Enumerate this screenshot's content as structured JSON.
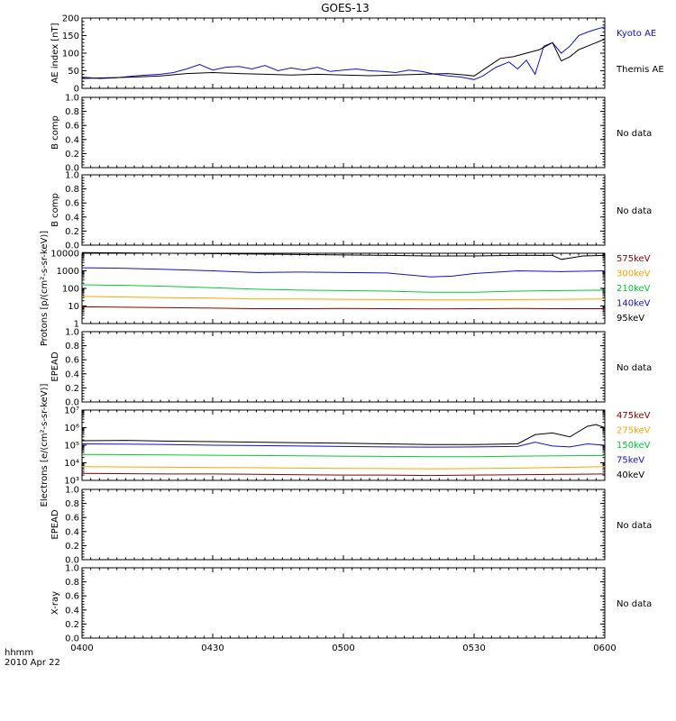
{
  "title": "GOES-13",
  "x_axis": {
    "corner_label": "hhmm",
    "date": "2010 Apr 22",
    "tick_labels": [
      "0400",
      "0430",
      "0500",
      "0530",
      "0600"
    ],
    "tick_values_min": [
      0,
      30,
      60,
      90,
      120
    ],
    "range_min": [
      0,
      120
    ]
  },
  "chart_data": [
    {
      "type": "line",
      "ylabel": "AE index [nT]",
      "ylim": [
        0,
        200
      ],
      "yticks": [
        0,
        50,
        100,
        150,
        200
      ],
      "ytick_labels": [
        "0",
        "50",
        "100",
        "150",
        "200"
      ],
      "legend_placement": "right",
      "series": [
        {
          "name": "Kyoto AE",
          "color": "#1010d0",
          "x": [
            0,
            4,
            8,
            12,
            15,
            18,
            21,
            24,
            27,
            30,
            33,
            36,
            39,
            42,
            45,
            48,
            51,
            54,
            57,
            60,
            63,
            66,
            69,
            72,
            75,
            78,
            81,
            84,
            87,
            90,
            92,
            95,
            98,
            100,
            102,
            104,
            106,
            108,
            110,
            112,
            114,
            116,
            118,
            120
          ],
          "y": [
            32,
            28,
            30,
            35,
            38,
            40,
            45,
            55,
            68,
            52,
            60,
            62,
            55,
            65,
            50,
            58,
            52,
            60,
            48,
            52,
            55,
            50,
            48,
            45,
            52,
            48,
            40,
            35,
            32,
            25,
            35,
            60,
            75,
            55,
            80,
            40,
            120,
            130,
            100,
            120,
            150,
            160,
            168,
            175
          ]
        },
        {
          "name": "Themis AE",
          "color": "#000000",
          "x": [
            0,
            6,
            12,
            18,
            24,
            30,
            36,
            42,
            48,
            54,
            60,
            66,
            72,
            78,
            84,
            88,
            90,
            93,
            96,
            99,
            102,
            105,
            108,
            110,
            112,
            114,
            117,
            120
          ],
          "y": [
            28,
            30,
            32,
            35,
            42,
            45,
            42,
            40,
            38,
            40,
            38,
            36,
            38,
            40,
            42,
            38,
            35,
            60,
            85,
            90,
            100,
            110,
            130,
            78,
            90,
            110,
            125,
            140
          ]
        }
      ]
    },
    {
      "type": "line",
      "ylabel": "B comp",
      "ylim": [
        0,
        1
      ],
      "yticks": [
        0,
        0.2,
        0.4,
        0.6,
        0.8,
        1.0
      ],
      "ytick_labels": [
        "0.0",
        "0.2",
        "0.4",
        "0.6",
        "0.8",
        "1.0"
      ],
      "status": "No data",
      "series": []
    },
    {
      "type": "line",
      "ylabel": "B comp",
      "ylim": [
        0,
        1
      ],
      "yticks": [
        0,
        0.2,
        0.4,
        0.6,
        0.8,
        1.0
      ],
      "ytick_labels": [
        "0.0",
        "0.2",
        "0.4",
        "0.6",
        "0.8",
        "1.0"
      ],
      "status": "No data",
      "series": []
    },
    {
      "type": "line",
      "ylabel": "Protons [p/(cm²-s-sr-keV)]",
      "yscale": "log",
      "ylim": [
        1,
        10000
      ],
      "yticks": [
        1,
        10,
        100,
        1000,
        10000
      ],
      "ytick_labels": [
        "1",
        "10",
        "100",
        "1000",
        "10000"
      ],
      "legend_placement": "right",
      "series": [
        {
          "name": "575keV",
          "color": "#8b0000",
          "x": [
            0,
            10,
            20,
            30,
            40,
            50,
            60,
            70,
            80,
            90,
            100,
            110,
            120
          ],
          "y": [
            9,
            8.5,
            8,
            7.5,
            7,
            7,
            7.2,
            7,
            6.8,
            7,
            7.2,
            7,
            7
          ]
        },
        {
          "name": "300keV",
          "color": "#ffa500",
          "x": [
            0,
            10,
            20,
            30,
            40,
            50,
            60,
            70,
            80,
            90,
            100,
            110,
            120
          ],
          "y": [
            35,
            32,
            30,
            28,
            25,
            25,
            24,
            23,
            22,
            22,
            23,
            24,
            25
          ]
        },
        {
          "name": "210keV",
          "color": "#00cc33",
          "x": [
            0,
            10,
            20,
            30,
            40,
            50,
            60,
            70,
            80,
            90,
            100,
            110,
            120
          ],
          "y": [
            160,
            150,
            130,
            110,
            90,
            80,
            75,
            70,
            60,
            60,
            70,
            75,
            80
          ]
        },
        {
          "name": "140keV",
          "color": "#1010d0",
          "x": [
            0,
            10,
            20,
            30,
            40,
            50,
            60,
            70,
            80,
            85,
            90,
            100,
            110,
            120
          ],
          "y": [
            1500,
            1400,
            1200,
            1000,
            800,
            850,
            800,
            750,
            450,
            500,
            700,
            1000,
            900,
            1000
          ]
        },
        {
          "name": "95keV",
          "color": "#000000",
          "x": [
            0,
            10,
            20,
            30,
            40,
            50,
            60,
            70,
            80,
            90,
            100,
            108,
            110,
            115,
            120
          ],
          "y": [
            11000,
            10500,
            10000,
            9500,
            9000,
            8500,
            8000,
            7500,
            7000,
            7000,
            7500,
            7500,
            4500,
            7000,
            7500
          ]
        }
      ]
    },
    {
      "type": "line",
      "ylabel": "EPEAD",
      "ylim": [
        0,
        1
      ],
      "yticks": [
        0,
        0.2,
        0.4,
        0.6,
        0.8,
        1.0
      ],
      "ytick_labels": [
        "0.0",
        "0.2",
        "0.4",
        "0.6",
        "0.8",
        "1.0"
      ],
      "status": "No data",
      "series": []
    },
    {
      "type": "line",
      "ylabel": "Electrons [e/(cm²-s-sr-keV)]",
      "yscale": "log",
      "ylim": [
        1000,
        10000000
      ],
      "yticks": [
        1000,
        10000,
        100000,
        1000000,
        10000000
      ],
      "ytick_labels": [
        "10³",
        "10⁴",
        "10⁵",
        "10⁶",
        "10⁷"
      ],
      "legend_placement": "right",
      "series": [
        {
          "name": "475keV",
          "color": "#8b0000",
          "x": [
            0,
            10,
            20,
            30,
            40,
            50,
            60,
            70,
            80,
            90,
            100,
            110,
            120
          ],
          "y": [
            2500,
            2400,
            2300,
            2300,
            2200,
            2100,
            2000,
            2000,
            1900,
            2000,
            2100,
            2200,
            2300
          ]
        },
        {
          "name": "275keV",
          "color": "#ffa500",
          "x": [
            0,
            10,
            20,
            30,
            40,
            50,
            60,
            70,
            80,
            90,
            100,
            110,
            120
          ],
          "y": [
            6000,
            5800,
            5600,
            5400,
            5200,
            5000,
            4800,
            4700,
            4600,
            4700,
            5000,
            5500,
            6000
          ]
        },
        {
          "name": "150keV",
          "color": "#00cc33",
          "x": [
            0,
            10,
            20,
            30,
            40,
            50,
            60,
            70,
            80,
            90,
            100,
            110,
            120
          ],
          "y": [
            30000,
            29000,
            28000,
            27000,
            26000,
            25000,
            24000,
            23000,
            22000,
            22000,
            24000,
            25000,
            26000
          ]
        },
        {
          "name": "75keV",
          "color": "#1010d0",
          "x": [
            0,
            10,
            20,
            30,
            40,
            50,
            60,
            70,
            80,
            90,
            100,
            104,
            108,
            112,
            116,
            120
          ],
          "y": [
            120000,
            115000,
            110000,
            100000,
            95000,
            90000,
            85000,
            80000,
            78000,
            80000,
            85000,
            150000,
            90000,
            80000,
            120000,
            100000
          ]
        },
        {
          "name": "40keV",
          "color": "#000000",
          "x": [
            0,
            10,
            20,
            30,
            40,
            50,
            60,
            70,
            80,
            90,
            100,
            104,
            108,
            112,
            116,
            118,
            120
          ],
          "y": [
            180000,
            190000,
            170000,
            160000,
            150000,
            140000,
            130000,
            120000,
            110000,
            110000,
            120000,
            400000,
            500000,
            300000,
            1200000,
            1500000,
            1000000
          ]
        }
      ]
    },
    {
      "type": "line",
      "ylabel": "EPEAD",
      "ylim": [
        0,
        1
      ],
      "yticks": [
        0,
        0.2,
        0.4,
        0.6,
        0.8,
        1.0
      ],
      "ytick_labels": [
        "0.0",
        "0.2",
        "0.4",
        "0.6",
        "0.8",
        "1.0"
      ],
      "status": "No data",
      "series": []
    },
    {
      "type": "line",
      "ylabel": "X-ray",
      "ylim": [
        0,
        1
      ],
      "yticks": [
        0,
        0.2,
        0.4,
        0.6,
        0.8,
        1.0
      ],
      "ytick_labels": [
        "0.0",
        "0.2",
        "0.4",
        "0.6",
        "0.8",
        "1.0"
      ],
      "status": "No data",
      "series": []
    }
  ]
}
